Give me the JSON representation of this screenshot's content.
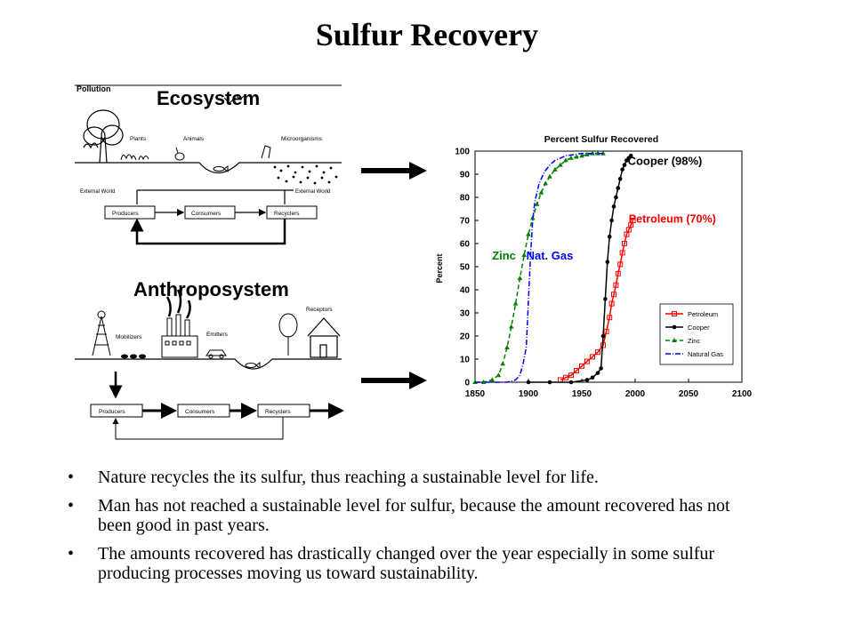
{
  "slide": {
    "title": "Sulfur Recovery"
  },
  "diagram": {
    "pollution_label": "Pollution",
    "ecosystem": {
      "title": "Ecosystem",
      "plants": "Plants",
      "animals": "Animals",
      "microorganisms": "Microorganisms",
      "external_left": "External World",
      "external_right": "External World",
      "producers": "Producers",
      "consumers": "Consumers",
      "recyclers": "Recyclers"
    },
    "anthroposystem": {
      "title": "Anthroposystem",
      "receptors": "Receptors",
      "mobilizers": "Mobilizers",
      "emitters": "Emitters",
      "producers": "Producers",
      "consumers": "Consumers",
      "recyclers": "Recyclers"
    }
  },
  "bullets": [
    "Nature recycles the its sulfur, thus reaching a sustainable level for life.",
    "Man has not reached a sustainable level for sulfur, because the amount recovered has not been good in past years.",
    "The amounts recovered has drastically changed over the year especially in some sulfur producing processes moving us toward sustainability."
  ],
  "chart_data": {
    "type": "line",
    "title": "Percent Sulfur Recovered",
    "xlabel": "",
    "ylabel": "Percent",
    "xlim": [
      1850,
      2100
    ],
    "ylim": [
      0,
      100
    ],
    "x_ticks": [
      1850,
      1900,
      1950,
      2000,
      2050,
      2100
    ],
    "y_ticks": [
      0,
      10,
      20,
      30,
      40,
      50,
      60,
      70,
      80,
      90,
      100
    ],
    "legend_position": "bottom-right",
    "annotations": [
      {
        "text": "Cooper (98%)",
        "series": "Cooper"
      },
      {
        "text": "Petroleum (70%)",
        "series": "Petroleum"
      },
      {
        "text": "Zinc",
        "series": "Zinc"
      },
      {
        "text": "Nat. Gas",
        "series": "Natural Gas"
      }
    ],
    "series": [
      {
        "name": "Petroleum",
        "color": "#ff0000",
        "marker": "square",
        "dash": "solid",
        "x": [
          1930,
          1935,
          1940,
          1945,
          1950,
          1955,
          1960,
          1965,
          1970,
          1973,
          1976,
          1978,
          1980,
          1982,
          1984,
          1986,
          1988,
          1990,
          1992,
          1994,
          1996,
          1998
        ],
        "y": [
          1,
          2,
          3,
          5,
          7,
          9,
          11,
          13,
          16,
          22,
          28,
          34,
          38,
          42,
          47,
          51,
          56,
          60,
          64,
          66,
          68,
          70
        ]
      },
      {
        "name": "Cooper",
        "color": "#000000",
        "marker": "circle",
        "dash": "solid",
        "x": [
          1900,
          1920,
          1940,
          1955,
          1960,
          1965,
          1968,
          1970,
          1972,
          1974,
          1976,
          1978,
          1980,
          1982,
          1984,
          1986,
          1988,
          1990,
          1992,
          1994,
          1996
        ],
        "y": [
          0,
          0,
          0,
          1,
          2,
          4,
          6,
          20,
          36,
          52,
          63,
          70,
          76,
          80,
          84,
          88,
          92,
          94,
          96,
          97,
          98
        ]
      },
      {
        "name": "Zinc",
        "color": "#008000",
        "marker": "triangle",
        "dash": "dash",
        "x": [
          1850,
          1858,
          1866,
          1872,
          1876,
          1880,
          1884,
          1888,
          1892,
          1896,
          1900,
          1904,
          1908,
          1912,
          1916,
          1920,
          1925,
          1930,
          1935,
          1940,
          1945,
          1950,
          1955,
          1960,
          1965,
          1970
        ],
        "y": [
          0,
          0,
          1,
          3,
          8,
          15,
          24,
          34,
          45,
          55,
          64,
          71,
          77,
          82,
          86,
          89,
          92,
          94,
          96,
          97,
          97.5,
          98,
          98.5,
          99,
          99,
          99
        ]
      },
      {
        "name": "Natural Gas",
        "color": "#0000ff",
        "marker": "none",
        "dash": "dashdot",
        "x": [
          1850,
          1870,
          1880,
          1888,
          1892,
          1895,
          1898,
          1900,
          1902,
          1904,
          1906,
          1910,
          1915,
          1920,
          1925,
          1935,
          1950,
          1960,
          1970
        ],
        "y": [
          0,
          0,
          0,
          1,
          3,
          8,
          15,
          35,
          55,
          70,
          78,
          86,
          91,
          94,
          96,
          98,
          99,
          99,
          99
        ]
      }
    ]
  }
}
